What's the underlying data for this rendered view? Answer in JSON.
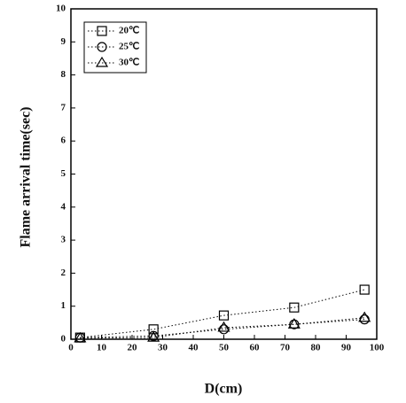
{
  "chart_data": {
    "type": "line",
    "x_label": "D(cm)",
    "y_label": "Flame arrival time(sec)",
    "xlim": [
      0,
      100
    ],
    "xticks": [
      0,
      10,
      20,
      30,
      40,
      50,
      60,
      70,
      80,
      90,
      100
    ],
    "ylim": [
      0,
      10
    ],
    "yticks": [
      0,
      1,
      2,
      3,
      4,
      5,
      6,
      7,
      8,
      9,
      10
    ],
    "legend": "upper left",
    "line_style": "dotted",
    "series": [
      {
        "name": "20℃",
        "color": "#000000",
        "marker": "square",
        "x": [
          3,
          27,
          50,
          73,
          96
        ],
        "values": [
          0.05,
          0.3,
          0.72,
          0.96,
          1.5
        ]
      },
      {
        "name": "25℃",
        "color": "#000000",
        "marker": "circle",
        "x": [
          3,
          27,
          50,
          73,
          96
        ],
        "values": [
          0.05,
          0.1,
          0.3,
          0.45,
          0.6
        ]
      },
      {
        "name": "30℃",
        "color": "#000000",
        "marker": "triangle",
        "x": [
          3,
          27,
          50,
          73,
          96
        ],
        "values": [
          0.03,
          0.05,
          0.35,
          0.45,
          0.65
        ]
      }
    ]
  }
}
